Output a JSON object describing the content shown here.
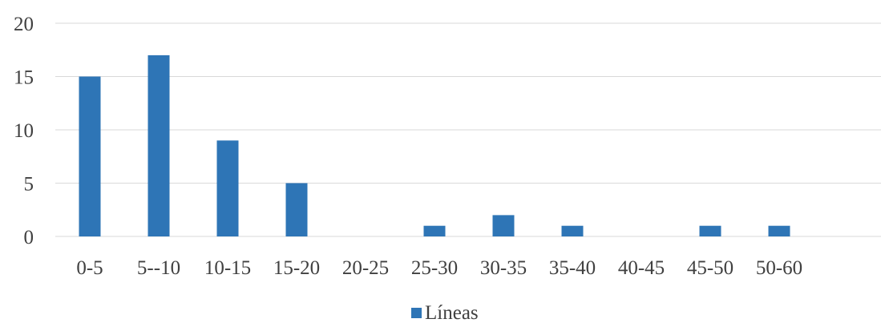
{
  "chart_data": {
    "type": "bar",
    "categories": [
      "0-5",
      "5--10",
      "10-15",
      "15-20",
      "20-25",
      "25-30",
      "30-35",
      "35-40",
      "40-45",
      "45-50",
      "50-60"
    ],
    "series": [
      {
        "name": "Líneas",
        "values": [
          15,
          17,
          9,
          5,
          0,
          1,
          2,
          1,
          0,
          1,
          1
        ]
      }
    ],
    "y_ticks": [
      "0",
      "5",
      "10",
      "15",
      "20"
    ],
    "ylim": [
      0,
      20
    ],
    "grid": true,
    "legend": "bottom-center",
    "bar_color": "#2e75b6",
    "grid_color": "#d9d9d9",
    "text_color": "#404040"
  }
}
